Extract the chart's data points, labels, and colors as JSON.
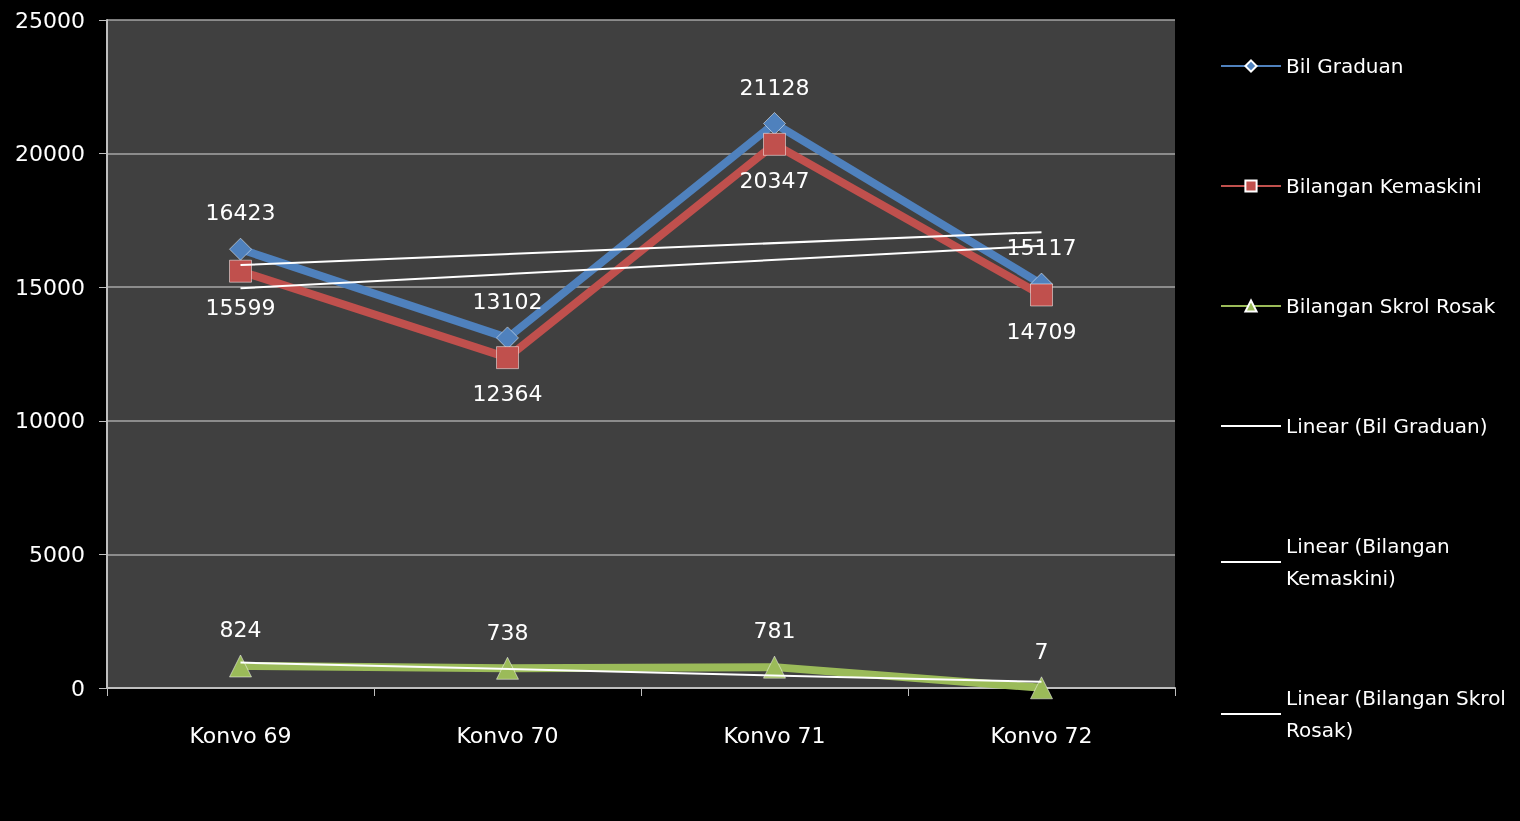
{
  "chart_data": {
    "type": "line",
    "categories": [
      "Konvo 69",
      "Konvo 70",
      "Konvo 71",
      "Konvo 72"
    ],
    "series": [
      {
        "name": "Bil Graduan",
        "color": "#4f81bd",
        "marker": "diamond",
        "values": [
          16423,
          13102,
          21128,
          15117
        ],
        "value_labels": [
          "16423",
          "13102",
          "21128",
          "15117"
        ]
      },
      {
        "name": "Bilangan Kemaskini",
        "color": "#c0504d",
        "marker": "square",
        "values": [
          15599,
          12364,
          20347,
          14709
        ],
        "value_labels": [
          "15599",
          "12364",
          "20347",
          "14709"
        ]
      },
      {
        "name": "Bilangan Skrol Rosak",
        "color": "#9bbb59",
        "marker": "triangle",
        "values": [
          824,
          738,
          781,
          7
        ],
        "value_labels": [
          "824",
          "738",
          "781",
          "7"
        ]
      },
      {
        "name": "Linear (Bil Graduan)",
        "color": "#ffffff",
        "marker": "none",
        "x": [
          "Konvo 69",
          "Konvo 72"
        ],
        "values": [
          15830,
          17060
        ]
      },
      {
        "name": "Linear (Bilangan Kemaskini)",
        "color": "#ffffff",
        "marker": "none",
        "x": [
          "Konvo 69",
          "Konvo 72"
        ],
        "values": [
          14960,
          16550
        ]
      },
      {
        "name": "Linear (Bilangan Skrol Rosak)",
        "color": "#ffffff",
        "marker": "none",
        "x": [
          "Konvo 69",
          "Konvo 72"
        ],
        "values": [
          950,
          230
        ]
      }
    ],
    "ylim": [
      0,
      25000
    ],
    "yticks": [
      0,
      5000,
      10000,
      15000,
      20000,
      25000
    ],
    "grid": "y",
    "legend": "right"
  }
}
